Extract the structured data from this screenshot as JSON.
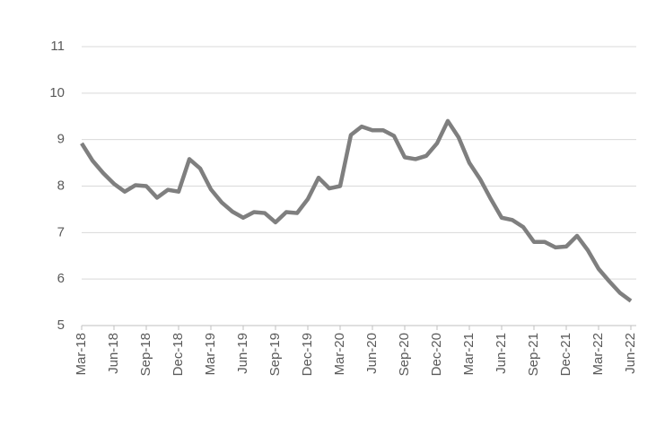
{
  "chart_data": {
    "type": "line",
    "categories": [
      "Mar-18",
      null,
      null,
      "Jun-18",
      null,
      null,
      "Sep-18",
      null,
      null,
      "Dec-18",
      null,
      null,
      "Mar-19",
      null,
      null,
      "Jun-19",
      null,
      null,
      "Sep-19",
      null,
      null,
      "Dec-19",
      null,
      null,
      "Mar-20",
      null,
      null,
      "Jun-20",
      null,
      null,
      "Sep-20",
      null,
      null,
      "Dec-20",
      null,
      null,
      "Mar-21",
      null,
      null,
      "Jun-21",
      null,
      null,
      "Sep-21",
      null,
      null,
      "Dec-21",
      null,
      null,
      "Mar-22",
      null,
      null,
      "Jun-22"
    ],
    "series": [
      {
        "color": "#7f7f7f",
        "values": [
          8.92,
          8.55,
          8.28,
          8.05,
          7.88,
          8.02,
          8.0,
          7.75,
          7.92,
          7.88,
          8.58,
          8.38,
          7.93,
          7.65,
          7.45,
          7.32,
          7.44,
          7.42,
          7.22,
          7.44,
          7.42,
          7.72,
          8.18,
          7.95,
          8.0,
          9.1,
          9.28,
          9.2,
          9.2,
          9.08,
          8.62,
          8.58,
          8.65,
          8.92,
          9.4,
          9.05,
          8.5,
          8.15,
          7.72,
          7.32,
          7.27,
          7.12,
          6.8,
          6.8,
          6.68,
          6.7,
          6.93,
          6.62,
          6.22,
          5.95,
          5.7,
          5.53
        ]
      }
    ],
    "ylim": [
      5,
      11
    ],
    "yticks": [
      5,
      6,
      7,
      8,
      9,
      10,
      11
    ],
    "grid": true
  }
}
